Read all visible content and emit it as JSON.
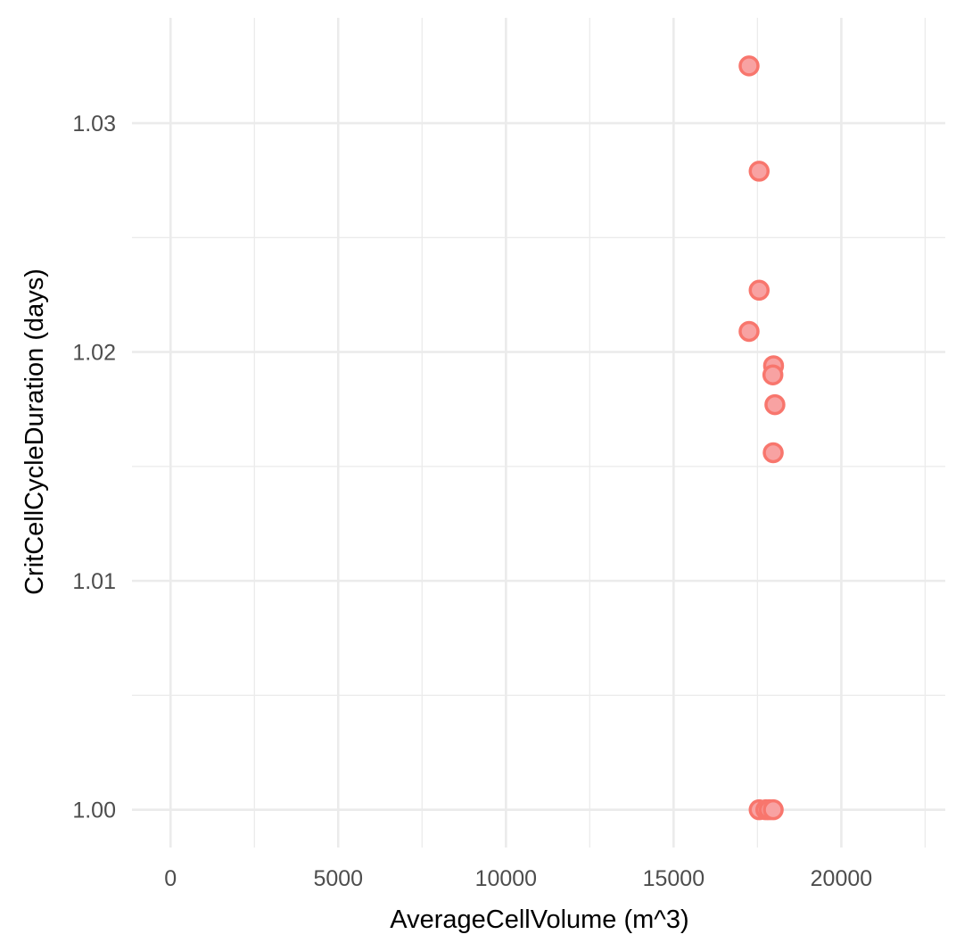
{
  "chart_data": {
    "type": "scatter",
    "title": "",
    "xlabel": "AverageCellVolume (m^3)",
    "ylabel": "CritCellCycleDuration (days)",
    "xlim": [
      -1150,
      23100
    ],
    "ylim": [
      0.99835,
      1.0346
    ],
    "x_ticks": [
      0,
      5000,
      10000,
      15000,
      20000
    ],
    "x_tick_labels": [
      "0",
      "5000",
      "10000",
      "15000",
      "20000"
    ],
    "x_minor_ticks": [
      2500,
      7500,
      12500,
      17500,
      22500
    ],
    "y_ticks": [
      1.0,
      1.01,
      1.02,
      1.03
    ],
    "y_tick_labels": [
      "1.00",
      "1.01",
      "1.02",
      "1.03"
    ],
    "y_minor_ticks": [
      1.005,
      1.015,
      1.025
    ],
    "grid": true,
    "legend": "none",
    "marker": {
      "fill": "#f8a2a2",
      "stroke": "#f8766d"
    },
    "points": [
      {
        "x": 17250,
        "y": 1.0325
      },
      {
        "x": 17550,
        "y": 1.0279
      },
      {
        "x": 17550,
        "y": 1.0227
      },
      {
        "x": 17250,
        "y": 1.0209
      },
      {
        "x": 17980,
        "y": 1.0194
      },
      {
        "x": 17960,
        "y": 1.019
      },
      {
        "x": 18020,
        "y": 1.0177
      },
      {
        "x": 17970,
        "y": 1.0156
      },
      {
        "x": 17550,
        "y": 1.0
      },
      {
        "x": 17750,
        "y": 1.0
      },
      {
        "x": 17850,
        "y": 1.0
      },
      {
        "x": 17970,
        "y": 1.0
      }
    ]
  }
}
